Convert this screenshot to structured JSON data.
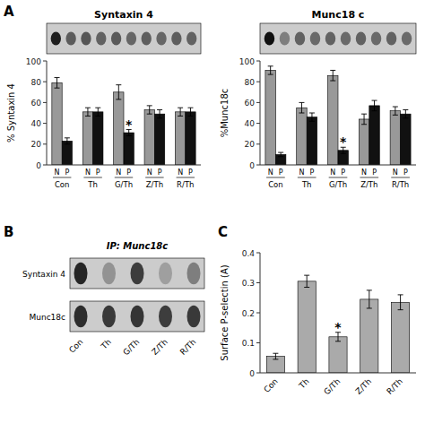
{
  "chart_data": [
    {
      "type": "blot",
      "title": "Syntaxin 4",
      "values": [
        0.85,
        0.55,
        0.58,
        0.52,
        0.56,
        0.5,
        0.54,
        0.5,
        0.54,
        0.52
      ],
      "annotations": [
        {
          "text": "A"
        }
      ]
    },
    {
      "type": "bar",
      "ylabel": "% Syntaxin 4",
      "categories": [
        "Con",
        "Th",
        "G/Th",
        "Z/Th",
        "R/Th"
      ],
      "series": [
        {
          "name": "N",
          "color": "#999999",
          "values": [
            79,
            51,
            70,
            53,
            51
          ],
          "errors": [
            5,
            4,
            7,
            4,
            4
          ]
        },
        {
          "name": "P",
          "color": "#111111",
          "values": [
            23,
            51,
            31,
            49,
            51
          ],
          "errors": [
            3,
            4,
            3,
            4,
            4
          ]
        }
      ],
      "ylim": [
        0,
        100
      ],
      "yticks": [
        0,
        20,
        40,
        60,
        80,
        100
      ],
      "annotations": [
        {
          "text": "*",
          "category": "G/Th",
          "series": "P"
        }
      ]
    },
    {
      "type": "blot",
      "title": "Munc18 c",
      "values": [
        0.92,
        0.38,
        0.52,
        0.48,
        0.52,
        0.48,
        0.52,
        0.48,
        0.52,
        0.48
      ]
    },
    {
      "type": "bar",
      "ylabel": "%Munc18c",
      "categories": [
        "Con",
        "Th",
        "G/Th",
        "Z/Th",
        "R/Th"
      ],
      "series": [
        {
          "name": "N",
          "color": "#999999",
          "values": [
            91,
            55,
            86,
            44,
            52
          ],
          "errors": [
            4,
            5,
            5,
            5,
            4
          ]
        },
        {
          "name": "P",
          "color": "#111111",
          "values": [
            10,
            46,
            14,
            57,
            49
          ],
          "errors": [
            2,
            4,
            3,
            5,
            4
          ]
        }
      ],
      "ylim": [
        0,
        100
      ],
      "yticks": [
        0,
        20,
        40,
        60,
        80,
        100
      ],
      "annotations": [
        {
          "text": "*",
          "category": "G/Th",
          "series": "P"
        }
      ]
    },
    {
      "type": "blot",
      "title": "IP: Munc18c",
      "categories": [
        "Con",
        "Th",
        "G/Th",
        "Z/Th",
        "R/Th"
      ],
      "series": [
        {
          "name": "Syntaxin 4",
          "values": [
            0.82,
            0.28,
            0.7,
            0.22,
            0.38
          ]
        },
        {
          "name": "Munc18c",
          "values": [
            0.78,
            0.72,
            0.74,
            0.7,
            0.72
          ]
        }
      ],
      "annotations": [
        {
          "text": "B"
        }
      ]
    },
    {
      "type": "bar",
      "ylabel": "Surface P-selectin (A)",
      "categories": [
        "Con",
        "Th",
        "G/Th",
        "Z/Th",
        "R/Th"
      ],
      "values": [
        0.055,
        0.305,
        0.12,
        0.245,
        0.235
      ],
      "errors": [
        0.01,
        0.02,
        0.015,
        0.03,
        0.025
      ],
      "color": "#aaaaaa",
      "ylim": [
        0,
        0.4
      ],
      "yticks": [
        0,
        0.1,
        0.2,
        0.3,
        0.4
      ],
      "annotations": [
        {
          "text": "*",
          "category": "G/Th"
        },
        {
          "text": "C"
        }
      ]
    }
  ]
}
